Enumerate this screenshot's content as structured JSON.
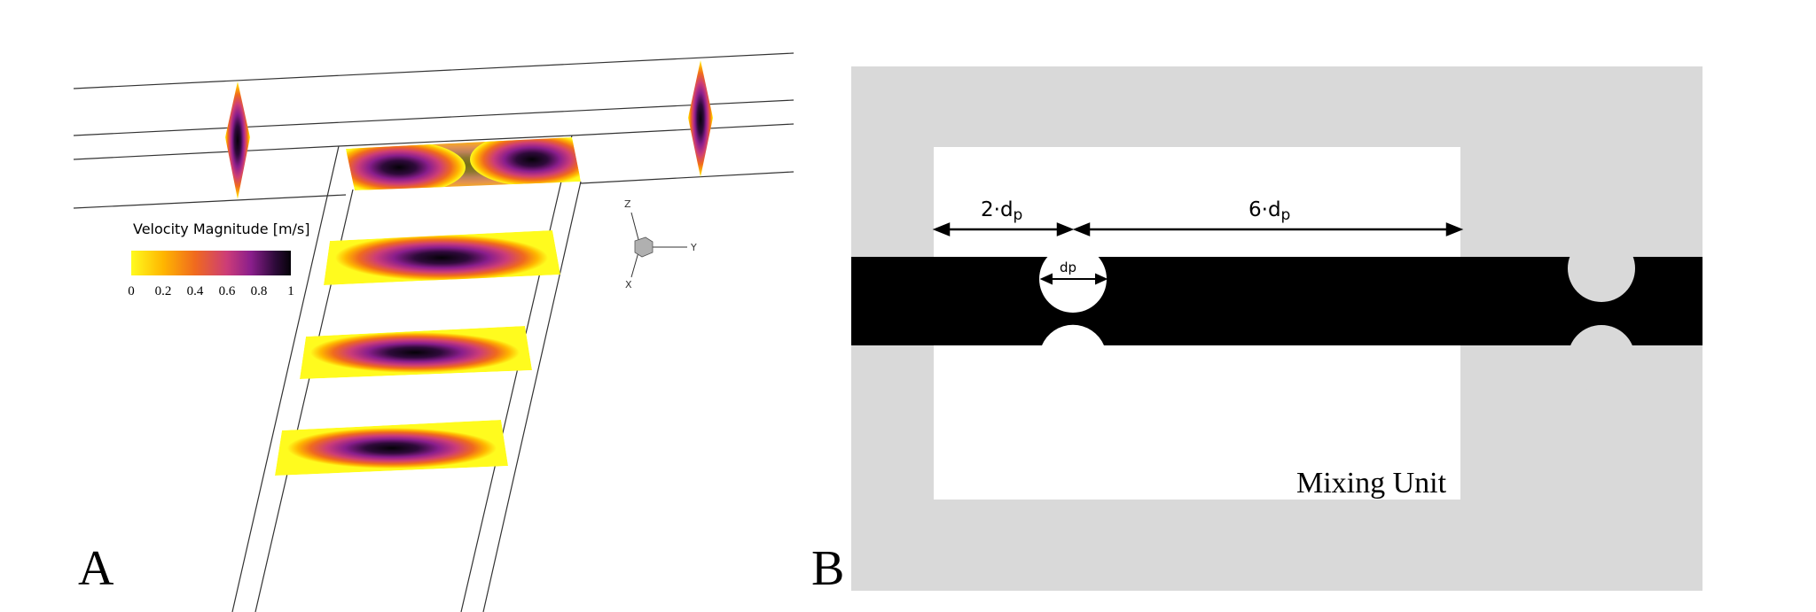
{
  "panel_a": {
    "label": "A",
    "legend": {
      "title": "Velocity Magnitude [m/s]",
      "ticks": [
        "0",
        "0.2",
        "0.4",
        "0.6",
        "0.8",
        "1"
      ],
      "colors": [
        "#fffb1e",
        "#ffb600",
        "#f06a1e",
        "#cc3c78",
        "#8a1e8c",
        "#2e0a3a",
        "#050208"
      ]
    },
    "axes_triad": {
      "z": "Z",
      "y": "Y",
      "x": "X"
    }
  },
  "panel_b": {
    "label": "B",
    "dim_left": "2·d",
    "dim_left_sub": "p",
    "dim_right": "6·d",
    "dim_right_sub": "p",
    "dim_small": "dp",
    "unit_label": "Mixing Unit",
    "colors": {
      "frame": "#d9d9d9",
      "channel": "#000000",
      "unit": "#ffffff"
    }
  }
}
